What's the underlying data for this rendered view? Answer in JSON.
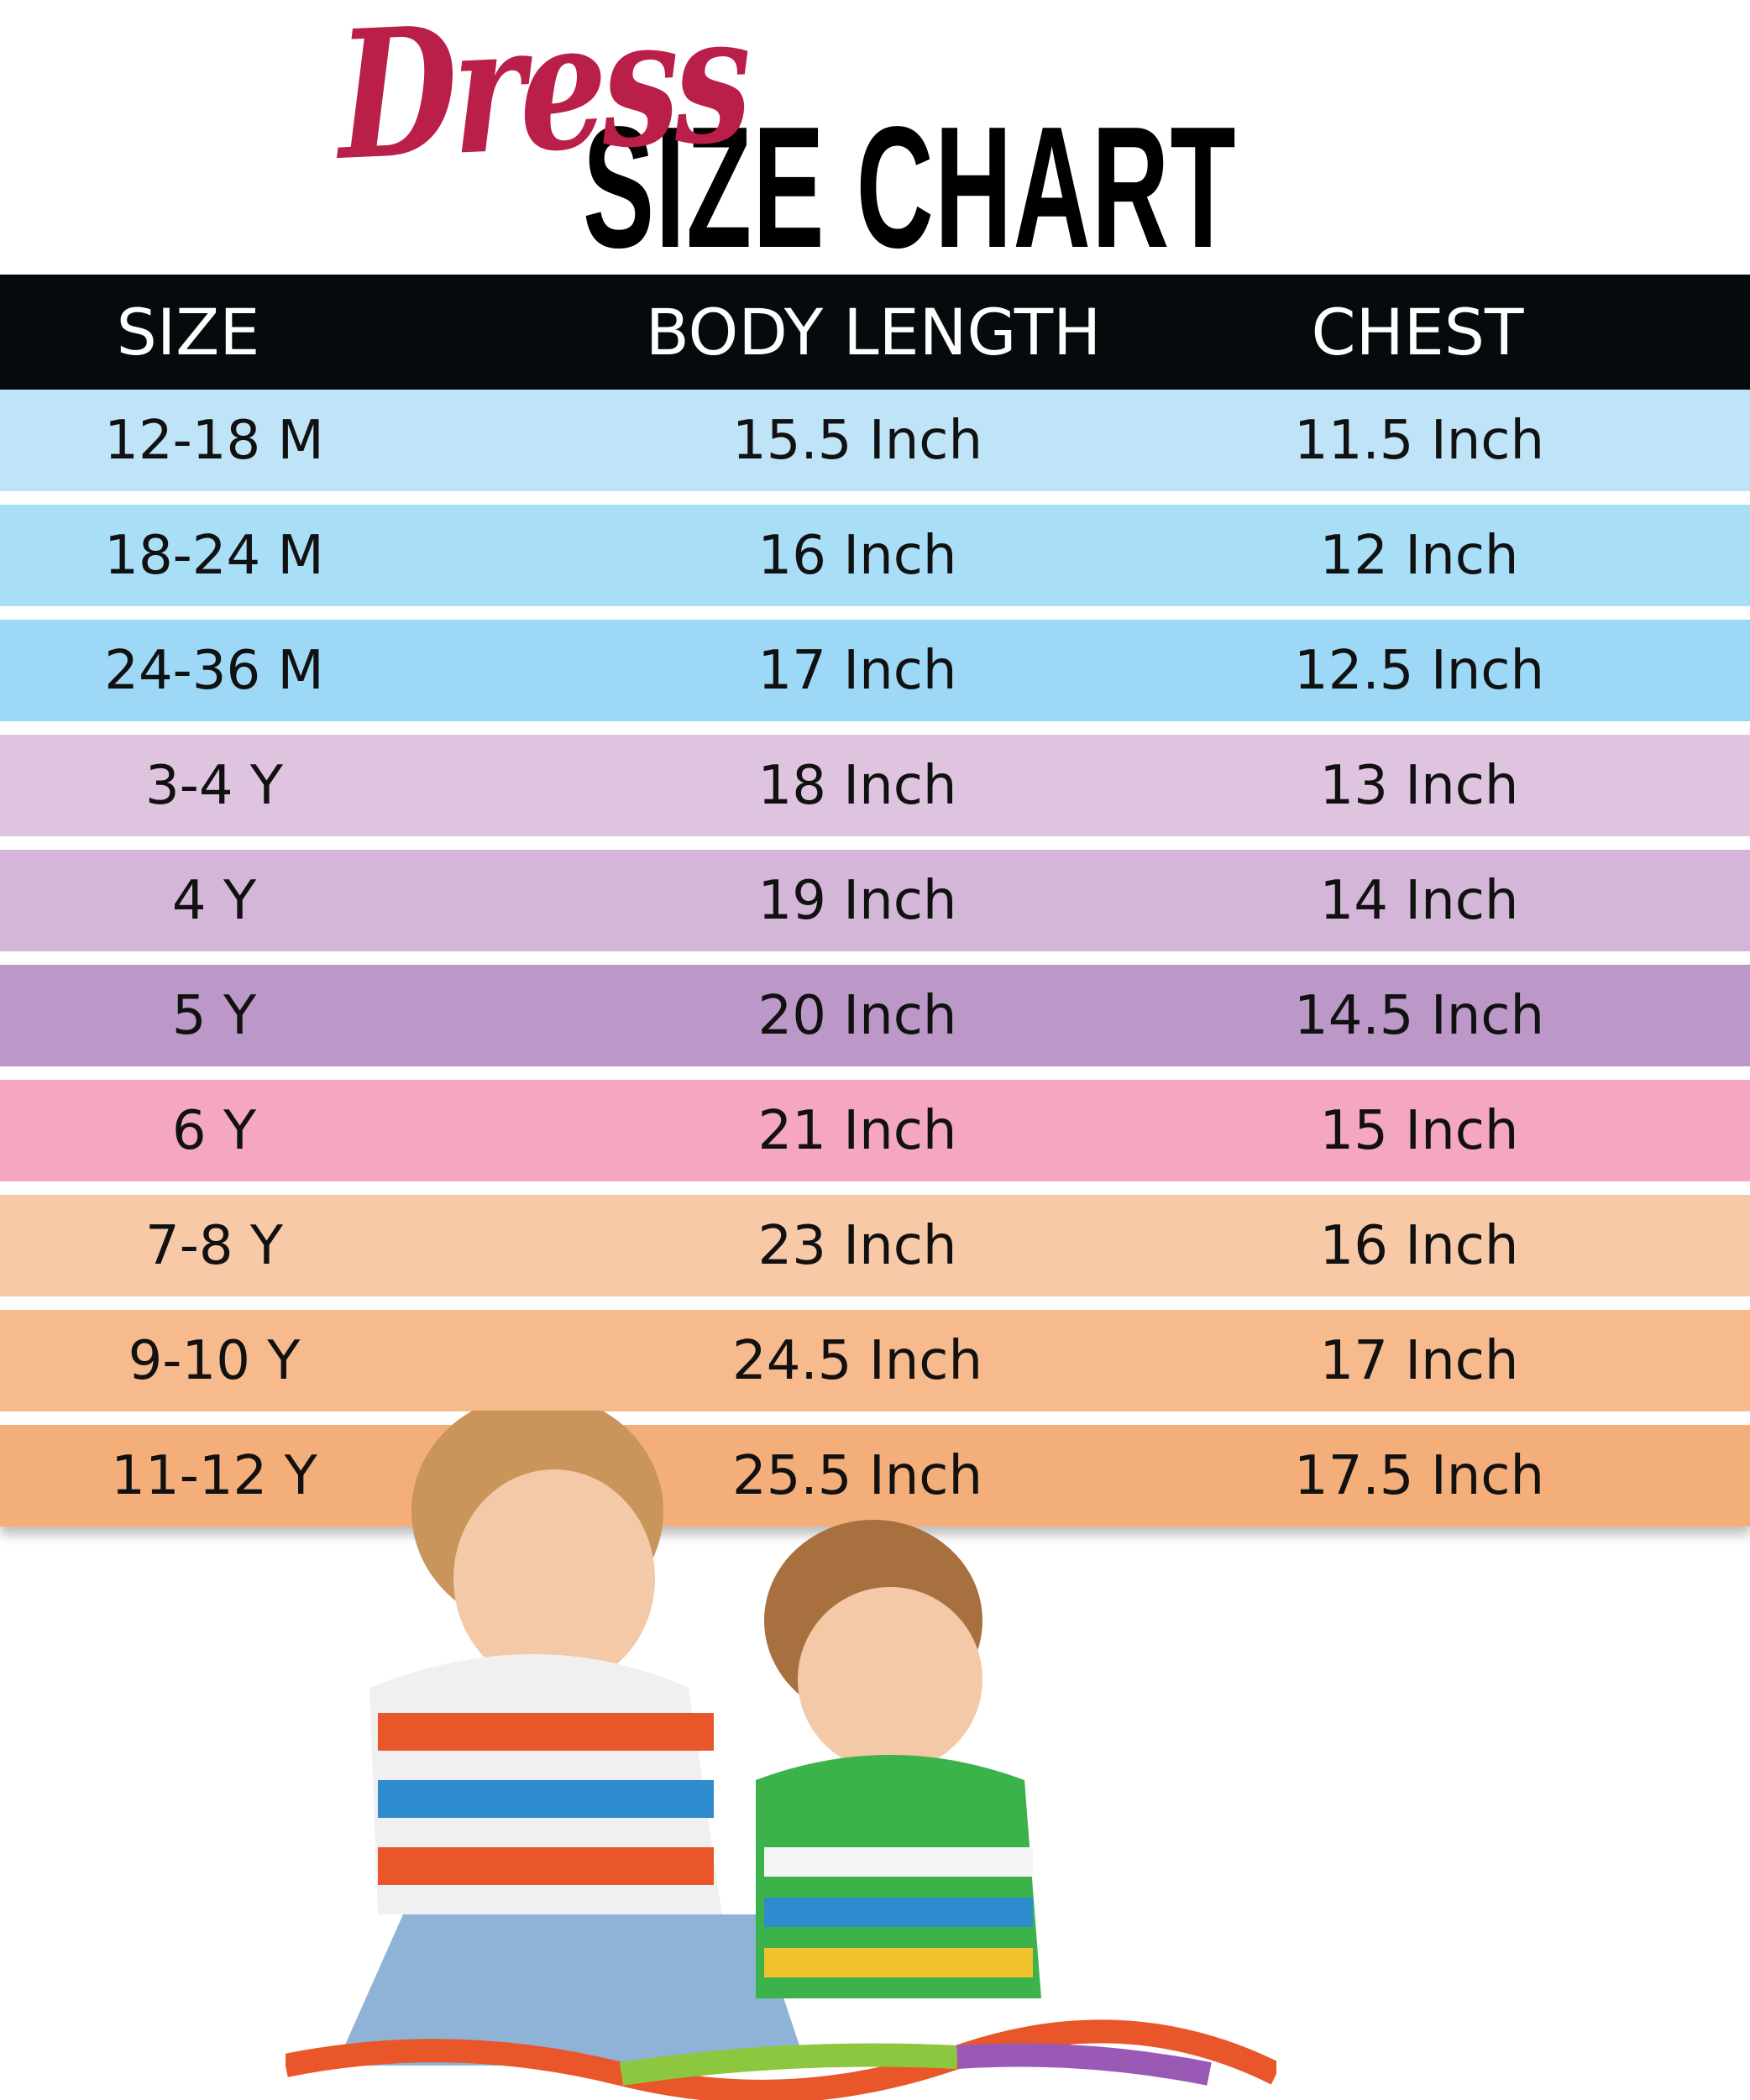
{
  "title": {
    "script": "Dress",
    "main": "SIZE CHART",
    "script_color": "#b91f48"
  },
  "table": {
    "headers": [
      "SIZE",
      "BODY LENGTH",
      "CHEST"
    ],
    "header_bg": "#050a0c",
    "rows": [
      {
        "size": "12-18 M",
        "body_length": "15.5 Inch",
        "chest": "11.5 Inch",
        "color": "#bfe4f8"
      },
      {
        "size": "18-24 M",
        "body_length": "16 Inch",
        "chest": "12 Inch",
        "color": "#a9def7"
      },
      {
        "size": "24-36 M",
        "body_length": "17 Inch",
        "chest": "12.5 Inch",
        "color": "#9dd9f6"
      },
      {
        "size": "3-4 Y",
        "body_length": "18 Inch",
        "chest": "13 Inch",
        "color": "#dfc4df"
      },
      {
        "size": "4 Y",
        "body_length": "19 Inch",
        "chest": "14 Inch",
        "color": "#d4b6d8"
      },
      {
        "size": "5 Y",
        "body_length": "20 Inch",
        "chest": "14.5 Inch",
        "color": "#bc98c8"
      },
      {
        "size": "6 Y",
        "body_length": "21 Inch",
        "chest": "15 Inch",
        "color": "#f5a7c0"
      },
      {
        "size": "7-8 Y",
        "body_length": "23 Inch",
        "chest": "16 Inch",
        "color": "#f8c9a7"
      },
      {
        "size": "9-10 Y",
        "body_length": "24.5 Inch",
        "chest": "17 Inch",
        "color": "#f6ba8d"
      },
      {
        "size": "11-12 Y",
        "body_length": "25.5 Inch",
        "chest": "17.5 Inch",
        "color": "#f4ae79"
      }
    ]
  }
}
